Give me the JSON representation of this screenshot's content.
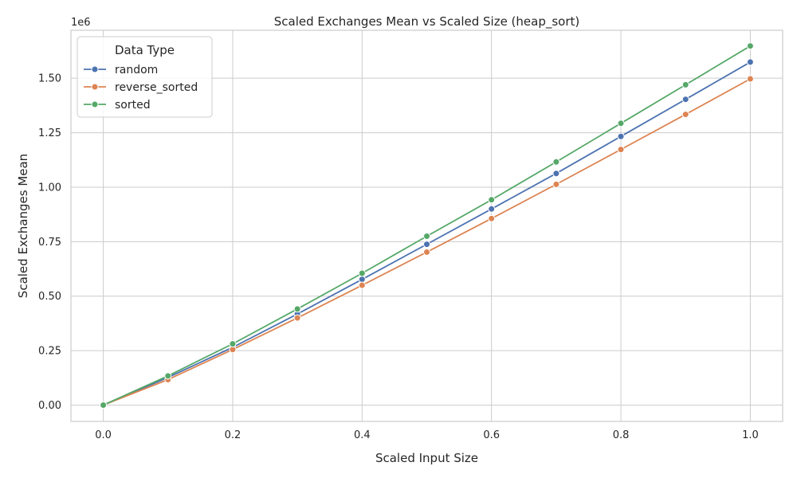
{
  "chart_data": {
    "type": "line",
    "title": "Scaled Exchanges Mean vs Scaled Size (heap_sort)",
    "xlabel": "Scaled Input Size",
    "ylabel": "Scaled Exchanges Mean",
    "y_offset_text": "1e6",
    "xlim": [
      -0.05,
      1.05
    ],
    "ylim": [
      -75000,
      1720000
    ],
    "x_ticks": [
      0.0,
      0.2,
      0.4,
      0.6,
      0.8,
      1.0
    ],
    "x_tick_labels": [
      "0.0",
      "0.2",
      "0.4",
      "0.6",
      "0.8",
      "1.0"
    ],
    "y_ticks": [
      0,
      250000,
      500000,
      750000,
      1000000,
      1250000,
      1500000
    ],
    "y_tick_labels": [
      "0.00",
      "0.25",
      "0.50",
      "0.75",
      "1.00",
      "1.25",
      "1.50"
    ],
    "grid": true,
    "legend": {
      "title": "Data Type",
      "position": "top-left"
    },
    "x": [
      0.0,
      0.1,
      0.2,
      0.3,
      0.4,
      0.5,
      0.6,
      0.7,
      0.8,
      0.9,
      1.0
    ],
    "series": [
      {
        "name": "random",
        "color": "#4c72b0",
        "values": [
          0,
          127000,
          265000,
          418000,
          577000,
          738000,
          900000,
          1063000,
          1233000,
          1403000,
          1574000
        ]
      },
      {
        "name": "reverse_sorted",
        "color": "#dd8452",
        "values": [
          0,
          117000,
          255000,
          400000,
          550000,
          702000,
          856000,
          1013000,
          1173000,
          1334000,
          1497000
        ]
      },
      {
        "name": "sorted",
        "color": "#55a868",
        "values": [
          0,
          134000,
          281000,
          441000,
          605000,
          775000,
          942000,
          1116000,
          1293000,
          1470000,
          1648000
        ]
      }
    ]
  }
}
